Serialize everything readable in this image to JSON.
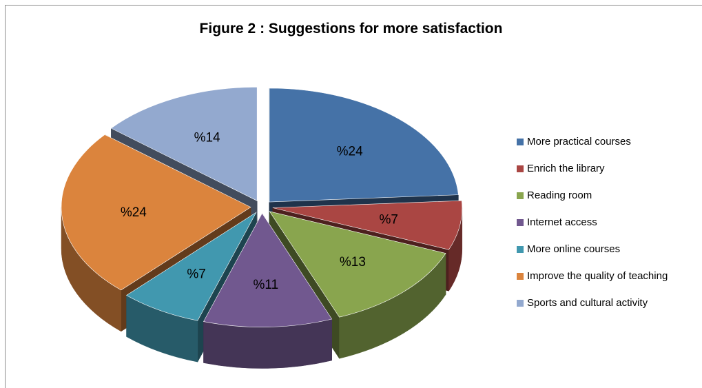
{
  "chart_data": {
    "type": "pie",
    "title": "Figure 2 : Suggestions for more satisfaction",
    "value_prefix": "%",
    "legend_position": "right",
    "categories": [
      "More practical courses",
      "Enrich the library",
      "Reading room",
      "Internet access",
      "More online courses",
      "Improve the quality of teaching",
      "Sports and cultural activity"
    ],
    "values": [
      24,
      7,
      13,
      11,
      7,
      24,
      14
    ],
    "colors": [
      "#4572a7",
      "#aa4643",
      "#89a54e",
      "#71588f",
      "#4198af",
      "#db843d",
      "#93a9cf"
    ],
    "style": "3d-exploded"
  }
}
